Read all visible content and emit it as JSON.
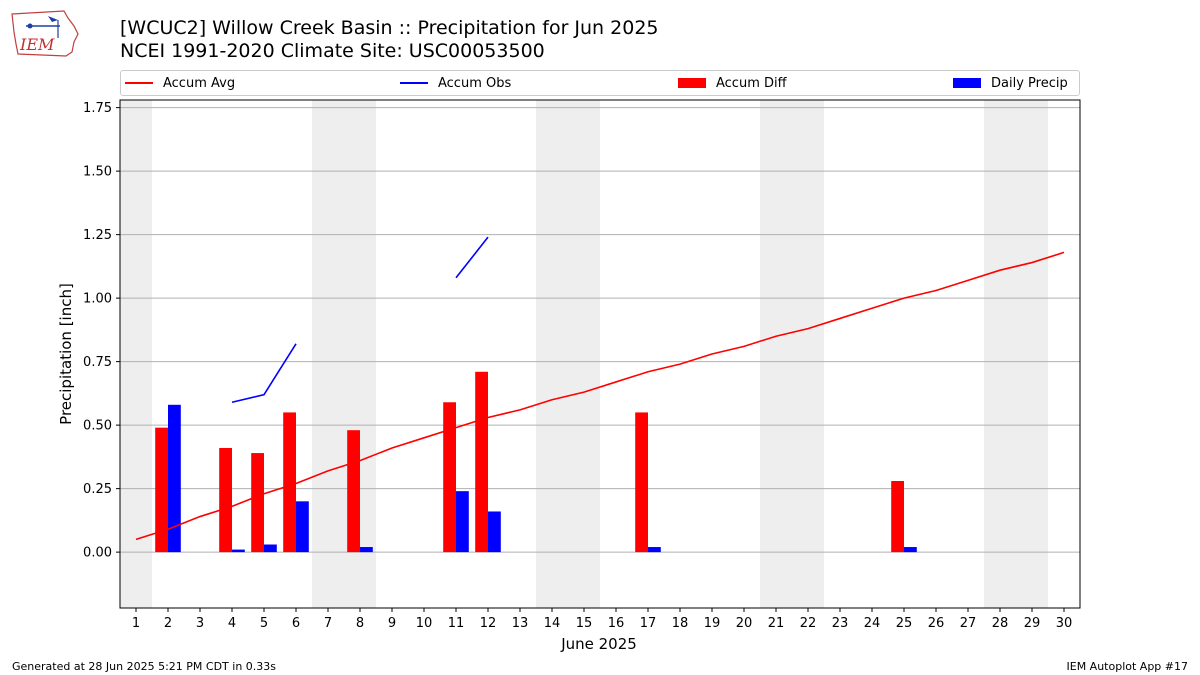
{
  "header": {
    "title_line1": "[WCUC2] Willow Creek Basin :: Precipitation for Jun 2025",
    "title_line2": "NCEI 1991-2020 Climate Site: USC00053500",
    "logo_text": "IEM"
  },
  "legend": [
    {
      "label": "Accum Avg",
      "kind": "line",
      "color": "#ff0000"
    },
    {
      "label": "Accum Obs",
      "kind": "line",
      "color": "#0000ff"
    },
    {
      "label": "Accum Diff",
      "kind": "bar",
      "color": "#ff0000"
    },
    {
      "label": "Daily Precip",
      "kind": "bar",
      "color": "#0000ff"
    }
  ],
  "footer": {
    "generated": "Generated at 28 Jun 2025 5:21 PM CDT in 0.33s",
    "app": "IEM Autoplot App #17"
  },
  "chart_data": {
    "type": "bar",
    "xlabel": "June 2025",
    "ylabel": "Precipitation [inch]",
    "xlim": [
      0.5,
      30.5
    ],
    "ylim": [
      -0.22,
      1.78
    ],
    "yticks": [
      0.0,
      0.25,
      0.5,
      0.75,
      1.0,
      1.25,
      1.5,
      1.75
    ],
    "grid": true,
    "legend_position": "top",
    "weekend_shading": [
      [
        0.5,
        1.5
      ],
      [
        6.5,
        8.5
      ],
      [
        13.5,
        15.5
      ],
      [
        20.5,
        22.5
      ],
      [
        27.5,
        29.5
      ]
    ],
    "days": [
      1,
      2,
      3,
      4,
      5,
      6,
      7,
      8,
      9,
      10,
      11,
      12,
      13,
      14,
      15,
      16,
      17,
      18,
      19,
      20,
      21,
      22,
      23,
      24,
      25,
      26,
      27,
      28,
      29,
      30
    ],
    "series": [
      {
        "name": "Accum Avg",
        "kind": "line",
        "color": "#ff0000",
        "values": [
          0.05,
          0.09,
          0.14,
          0.18,
          0.23,
          0.27,
          0.32,
          0.36,
          0.41,
          0.45,
          0.49,
          0.53,
          0.56,
          0.6,
          0.63,
          0.67,
          0.71,
          0.74,
          0.78,
          0.81,
          0.85,
          0.88,
          0.92,
          0.96,
          1.0,
          1.03,
          1.07,
          1.11,
          1.14,
          1.18
        ]
      },
      {
        "name": "Accum Obs",
        "kind": "line",
        "color": "#0000ff",
        "values": [
          null,
          null,
          null,
          0.59,
          0.62,
          0.82,
          null,
          null,
          null,
          null,
          1.08,
          1.24,
          null,
          null,
          null,
          null,
          null,
          null,
          null,
          null,
          null,
          null,
          null,
          null,
          null,
          null,
          null,
          null,
          null,
          null
        ]
      },
      {
        "name": "Accum Diff",
        "kind": "bar",
        "color": "#ff0000",
        "values": [
          null,
          0.49,
          null,
          0.41,
          0.39,
          0.55,
          null,
          0.48,
          null,
          null,
          0.59,
          0.71,
          null,
          null,
          null,
          null,
          0.55,
          null,
          null,
          null,
          null,
          null,
          null,
          null,
          0.28,
          null,
          null,
          null,
          null,
          null
        ]
      },
      {
        "name": "Daily Precip",
        "kind": "bar",
        "color": "#0000ff",
        "values": [
          null,
          0.58,
          null,
          0.01,
          0.03,
          0.2,
          null,
          0.02,
          null,
          null,
          0.24,
          0.16,
          null,
          null,
          null,
          null,
          0.02,
          null,
          null,
          null,
          null,
          null,
          null,
          null,
          0.02,
          null,
          null,
          null,
          null,
          null
        ]
      }
    ]
  }
}
